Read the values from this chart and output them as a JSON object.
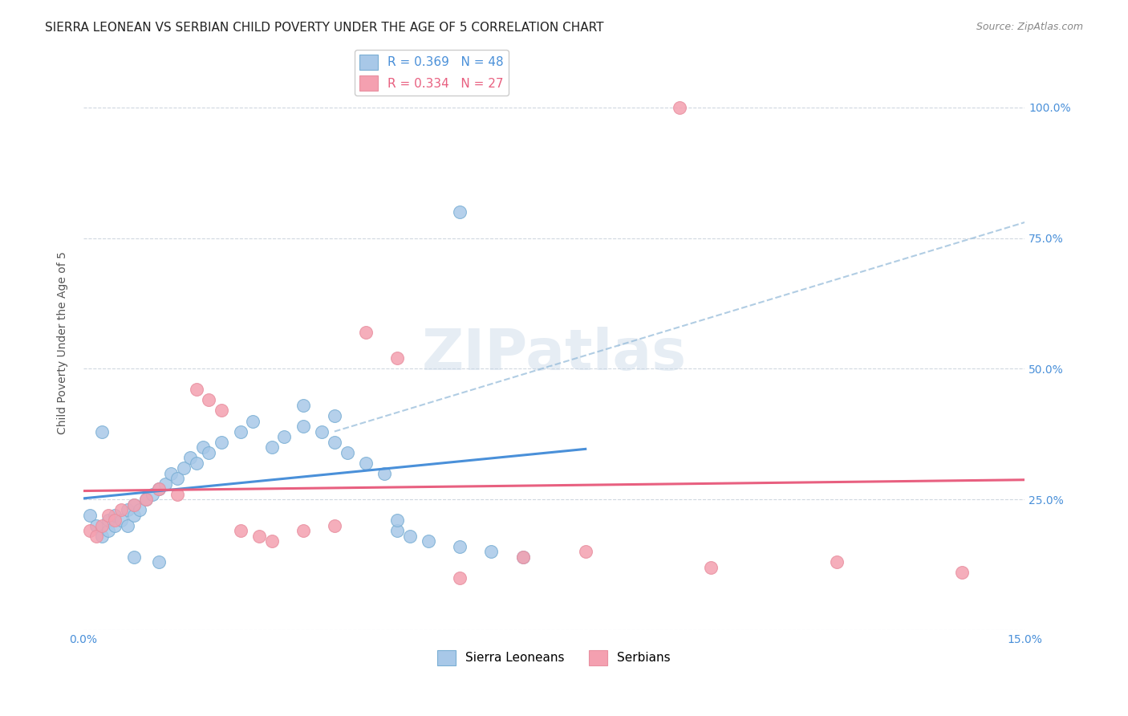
{
  "title": "SIERRA LEONEAN VS SERBIAN CHILD POVERTY UNDER THE AGE OF 5 CORRELATION CHART",
  "source": "Source: ZipAtlas.com",
  "ylabel": "Child Poverty Under the Age of 5",
  "xlim": [
    0.0,
    0.15
  ],
  "ylim": [
    0.0,
    1.1
  ],
  "yticks": [
    0.0,
    0.25,
    0.5,
    0.75,
    1.0
  ],
  "ytick_labels": [
    "",
    "25.0%",
    "50.0%",
    "75.0%",
    "100.0%"
  ],
  "xticks": [
    0.0,
    0.05,
    0.1,
    0.15
  ],
  "xtick_labels": [
    "0.0%",
    "",
    "",
    "15.0%"
  ],
  "legend1_label": "R = 0.369   N = 48",
  "legend2_label": "R = 0.334   N = 27",
  "legend1_text_color": "#4a90d9",
  "legend2_text_color": "#e86080",
  "sierra_leonean_x": [
    0.001,
    0.002,
    0.003,
    0.004,
    0.004,
    0.005,
    0.005,
    0.006,
    0.007,
    0.007,
    0.008,
    0.008,
    0.009,
    0.01,
    0.011,
    0.012,
    0.013,
    0.014,
    0.015,
    0.016,
    0.017,
    0.018,
    0.019,
    0.02,
    0.022,
    0.025,
    0.027,
    0.03,
    0.032,
    0.035,
    0.038,
    0.04,
    0.042,
    0.045,
    0.048,
    0.05,
    0.052,
    0.055,
    0.06,
    0.065,
    0.07,
    0.035,
    0.04,
    0.003,
    0.008,
    0.012,
    0.06,
    0.05
  ],
  "sierra_leonean_y": [
    0.22,
    0.2,
    0.18,
    0.19,
    0.21,
    0.2,
    0.22,
    0.21,
    0.2,
    0.23,
    0.22,
    0.24,
    0.23,
    0.25,
    0.26,
    0.27,
    0.28,
    0.3,
    0.29,
    0.31,
    0.33,
    0.32,
    0.35,
    0.34,
    0.36,
    0.38,
    0.4,
    0.35,
    0.37,
    0.39,
    0.38,
    0.36,
    0.34,
    0.32,
    0.3,
    0.19,
    0.18,
    0.17,
    0.16,
    0.15,
    0.14,
    0.43,
    0.41,
    0.38,
    0.14,
    0.13,
    0.8,
    0.21
  ],
  "serbian_x": [
    0.001,
    0.002,
    0.003,
    0.004,
    0.005,
    0.006,
    0.008,
    0.01,
    0.012,
    0.015,
    0.018,
    0.02,
    0.022,
    0.025,
    0.028,
    0.03,
    0.035,
    0.04,
    0.045,
    0.05,
    0.06,
    0.07,
    0.08,
    0.1,
    0.12,
    0.14,
    0.095
  ],
  "serbian_y": [
    0.19,
    0.18,
    0.2,
    0.22,
    0.21,
    0.23,
    0.24,
    0.25,
    0.27,
    0.26,
    0.46,
    0.44,
    0.42,
    0.19,
    0.18,
    0.17,
    0.19,
    0.2,
    0.57,
    0.52,
    0.1,
    0.14,
    0.15,
    0.12,
    0.13,
    0.11,
    1.0
  ],
  "sl_line_color": "#4a90d9",
  "sr_line_color": "#e86080",
  "sl_dot_color": "#a8c8e8",
  "sr_dot_color": "#f4a0b0",
  "sl_dot_edge": "#7aafd4",
  "sr_dot_edge": "#e890a0",
  "dash_line_color": "#90b8d8",
  "grid_color": "#d0d8e0",
  "background_color": "#ffffff",
  "watermark": "ZIPatlas",
  "title_fontsize": 11,
  "axis_label_fontsize": 10,
  "tick_fontsize": 10,
  "source_fontsize": 9
}
